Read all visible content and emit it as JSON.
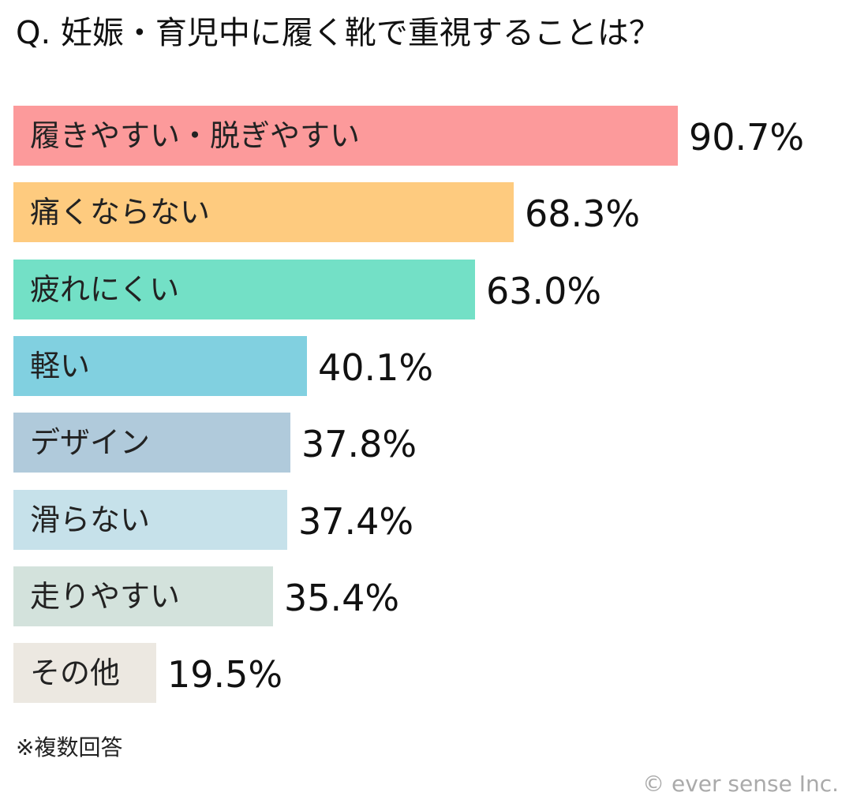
{
  "title": "Q. 妊娠・育児中に履く靴で重視することは？",
  "note": "※複数回答",
  "credit": "© ever sense Inc.",
  "chart_data": {
    "type": "bar",
    "orientation": "horizontal",
    "title": "Q. 妊娠・育児中に履く靴で重視することは？",
    "unit": "%",
    "xlim": [
      0,
      100
    ],
    "grid": false,
    "categories": [
      "履きやすい・脱ぎやすい",
      "痛くならない",
      "疲れにくい",
      "軽い",
      "デザイン",
      "滑らない",
      "走りやすい",
      "その他"
    ],
    "values": [
      90.7,
      68.3,
      63.0,
      40.1,
      37.8,
      37.4,
      35.4,
      19.5
    ],
    "value_labels": [
      "90.7%",
      "68.3%",
      "63.0%",
      "40.1%",
      "37.8%",
      "37.4%",
      "35.4%",
      "19.5%"
    ],
    "colors": [
      "#fc9a9b",
      "#fecb7f",
      "#73e0c6",
      "#81d0e0",
      "#b0cadb",
      "#c6e1ea",
      "#d3e2dc",
      "#ece8e1"
    ]
  }
}
